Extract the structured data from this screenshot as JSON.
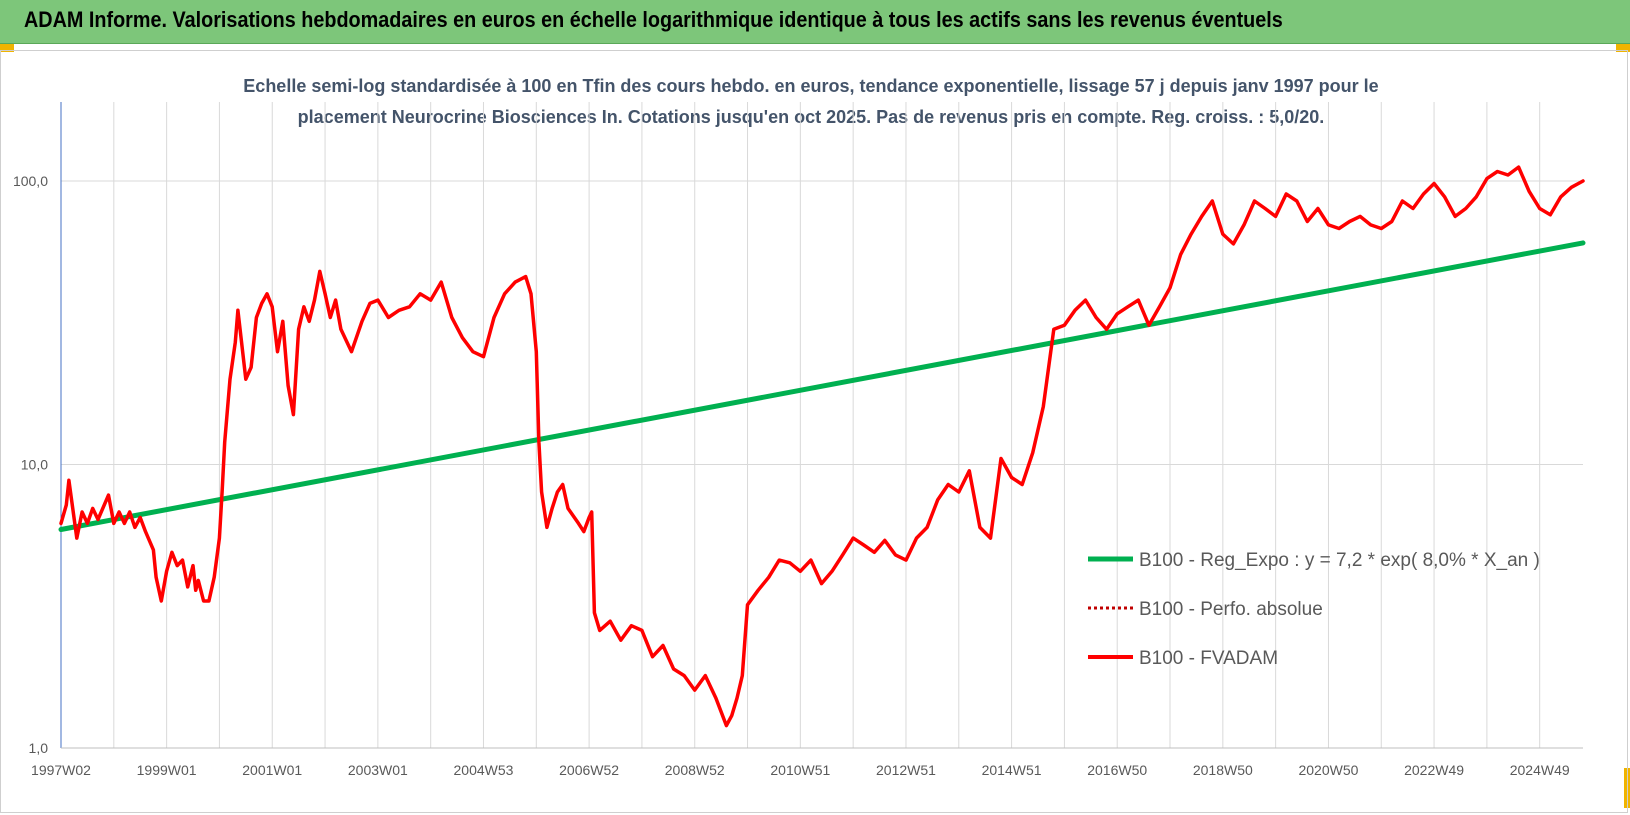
{
  "header": {
    "title": "ADAM Informe. Valorisations hebdomadaires en euros en échelle logarithmique identique à tous les actifs sans les revenus éventuels"
  },
  "colors": {
    "header_bg": "#7dc67a",
    "regression": "#00b050",
    "fvadam": "#ff0000",
    "perfo": "#c00000",
    "grid": "#d9d9d9",
    "subtitle": "#44546a"
  },
  "chart_data": {
    "type": "line",
    "title_lines": [
      "Echelle semi-log standardisée à 100 en Tfin des cours hebdo. en euros, tendance exponentielle, lissage 57 j depuis janv 1997 pour le",
      "placement Neurocrine Biosciences In. Cotations jusqu'en oct 2025. Pas de revenus pris en compte. Reg. croiss. : 5,0/20."
    ],
    "y_scale": "log",
    "ylim": [
      1,
      190
    ],
    "y_ticks": [
      {
        "value": 1,
        "label": "1,0"
      },
      {
        "value": 10,
        "label": "10,0"
      },
      {
        "value": 100,
        "label": "100,0"
      }
    ],
    "xlim": [
      1997.0,
      2025.82
    ],
    "x_ticks": [
      {
        "value": 1997.0,
        "label": "1997W02"
      },
      {
        "value": 1999.0,
        "label": "1999W01"
      },
      {
        "value": 2001.0,
        "label": "2001W01"
      },
      {
        "value": 2003.0,
        "label": "2003W01"
      },
      {
        "value": 2005.0,
        "label": "2004W53"
      },
      {
        "value": 2007.0,
        "label": "2006W52"
      },
      {
        "value": 2009.0,
        "label": "2008W52"
      },
      {
        "value": 2011.0,
        "label": "2010W51"
      },
      {
        "value": 2013.0,
        "label": "2012W51"
      },
      {
        "value": 2015.0,
        "label": "2014W51"
      },
      {
        "value": 2017.0,
        "label": "2016W50"
      },
      {
        "value": 2019.0,
        "label": "2018W50"
      },
      {
        "value": 2021.0,
        "label": "2020W50"
      },
      {
        "value": 2023.0,
        "label": "2022W49"
      },
      {
        "value": 2025.0,
        "label": "2024W49"
      }
    ],
    "legend_position": "right",
    "series": [
      {
        "name": "B100 - Reg_Expo : y = 7,2 * exp( 8,0% *  X_an )",
        "style": "solid-thick",
        "color": "#00b050",
        "x": [
          1997.0,
          2025.82
        ],
        "y": [
          5.9,
          60.5
        ]
      },
      {
        "name": "B100 - Perfo. absolue",
        "style": "dotted",
        "color": "#c00000",
        "x": [],
        "y": []
      },
      {
        "name": "B100 - FVADAM",
        "style": "solid",
        "color": "#ff0000",
        "x": [
          1997.0,
          1997.1,
          1997.15,
          1997.3,
          1997.4,
          1997.5,
          1997.6,
          1997.7,
          1997.9,
          1998.0,
          1998.1,
          1998.2,
          1998.3,
          1998.4,
          1998.5,
          1998.6,
          1998.75,
          1998.8,
          1998.9,
          1999.0,
          1999.1,
          1999.2,
          1999.3,
          1999.4,
          1999.5,
          1999.55,
          1999.6,
          1999.7,
          1999.8,
          1999.9,
          2000.0,
          2000.05,
          2000.1,
          2000.2,
          2000.3,
          2000.35,
          2000.5,
          2000.6,
          2000.7,
          2000.8,
          2000.9,
          2001.0,
          2001.1,
          2001.2,
          2001.3,
          2001.4,
          2001.5,
          2001.6,
          2001.7,
          2001.8,
          2001.9,
          2002.0,
          2002.1,
          2002.2,
          2002.3,
          2002.5,
          2002.7,
          2002.85,
          2003.0,
          2003.2,
          2003.4,
          2003.6,
          2003.8,
          2004.0,
          2004.2,
          2004.4,
          2004.6,
          2004.8,
          2005.0,
          2005.2,
          2005.4,
          2005.6,
          2005.8,
          2005.9,
          2006.0,
          2006.05,
          2006.1,
          2006.2,
          2006.3,
          2006.4,
          2006.5,
          2006.6,
          2006.8,
          2006.9,
          2007.0,
          2007.05,
          2007.1,
          2007.2,
          2007.4,
          2007.6,
          2007.8,
          2008.0,
          2008.2,
          2008.4,
          2008.6,
          2008.8,
          2009.0,
          2009.2,
          2009.4,
          2009.6,
          2009.7,
          2009.8,
          2009.9,
          2010.0,
          2010.2,
          2010.4,
          2010.6,
          2010.8,
          2011.0,
          2011.2,
          2011.4,
          2011.6,
          2011.8,
          2012.0,
          2012.2,
          2012.4,
          2012.6,
          2012.8,
          2013.0,
          2013.2,
          2013.4,
          2013.6,
          2013.8,
          2014.0,
          2014.2,
          2014.4,
          2014.6,
          2014.8,
          2015.0,
          2015.2,
          2015.4,
          2015.6,
          2015.8,
          2016.0,
          2016.2,
          2016.4,
          2016.6,
          2016.8,
          2017.0,
          2017.2,
          2017.4,
          2017.6,
          2017.8,
          2018.0,
          2018.2,
          2018.4,
          2018.6,
          2018.8,
          2019.0,
          2019.2,
          2019.4,
          2019.6,
          2019.8,
          2020.0,
          2020.2,
          2020.4,
          2020.6,
          2020.8,
          2021.0,
          2021.2,
          2021.4,
          2021.6,
          2021.8,
          2022.0,
          2022.2,
          2022.4,
          2022.6,
          2022.8,
          2023.0,
          2023.2,
          2023.4,
          2023.6,
          2023.8,
          2024.0,
          2024.2,
          2024.4,
          2024.6,
          2024.8,
          2025.0,
          2025.2,
          2025.4,
          2025.6,
          2025.82
        ],
        "y": [
          6.2,
          7.2,
          8.8,
          5.5,
          6.8,
          6.2,
          7.0,
          6.4,
          7.8,
          6.2,
          6.8,
          6.2,
          6.8,
          6.0,
          6.5,
          5.8,
          5.0,
          4.0,
          3.3,
          4.2,
          4.9,
          4.4,
          4.6,
          3.7,
          4.4,
          3.6,
          3.9,
          3.3,
          3.3,
          4.0,
          5.5,
          8.0,
          12.0,
          20.0,
          27.0,
          35.0,
          20.0,
          22.0,
          33.0,
          37.0,
          40.0,
          36.0,
          25.0,
          32.0,
          19.0,
          15.0,
          30.0,
          36.0,
          32.0,
          38.0,
          48.0,
          40.0,
          33.0,
          38.0,
          30.0,
          25.0,
          32.0,
          37.0,
          38.0,
          33.0,
          35.0,
          36.0,
          40.0,
          38.0,
          44.0,
          33.0,
          28.0,
          25.0,
          24.0,
          33.0,
          40.0,
          44.0,
          46.0,
          40.0,
          25.0,
          12.0,
          8.0,
          6.0,
          7.0,
          8.0,
          8.5,
          7.0,
          6.2,
          5.8,
          6.5,
          6.8,
          3.0,
          2.6,
          2.8,
          2.4,
          2.7,
          2.6,
          2.1,
          2.3,
          1.9,
          1.8,
          1.6,
          1.8,
          1.5,
          1.2,
          1.3,
          1.5,
          1.8,
          3.2,
          3.6,
          4.0,
          4.6,
          4.5,
          4.2,
          4.6,
          3.8,
          4.2,
          4.8,
          5.5,
          5.2,
          4.9,
          5.4,
          4.8,
          4.6,
          5.5,
          6.0,
          7.5,
          8.5,
          8.0,
          9.5,
          6.0,
          5.5,
          10.5,
          9.0,
          8.5,
          11.0,
          16.0,
          30.0,
          31.0,
          35.0,
          38.0,
          33.0,
          30.0,
          34.0,
          36.0,
          38.0,
          31.0,
          36.0,
          42.0,
          55.0,
          65.0,
          75.0,
          85.0,
          65.0,
          60.0,
          70.0,
          85.0,
          80.0,
          75.0,
          90.0,
          85.0,
          72.0,
          80.0,
          70.0,
          68.0,
          72.0,
          75.0,
          70.0,
          68.0,
          72.0,
          85.0,
          80.0,
          90.0,
          98.0,
          88.0,
          75.0,
          80.0,
          88.0,
          102.0,
          108.0,
          105.0,
          112.0,
          92.0,
          80.0,
          76.0,
          88.0,
          95.0,
          100.0
        ]
      }
    ]
  },
  "legend": {
    "items": [
      "B100 - Reg_Expo : y = 7,2 * exp( 8,0% *  X_an )",
      "B100 - Perfo. absolue",
      "B100 - FVADAM"
    ]
  }
}
